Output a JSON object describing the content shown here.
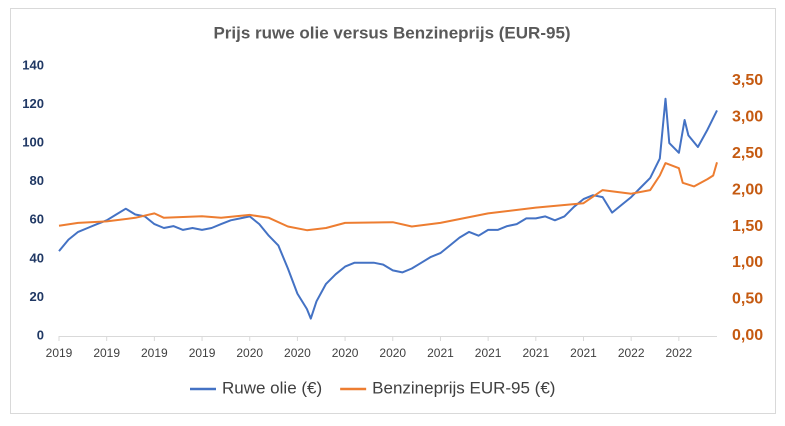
{
  "chart_data": {
    "type": "line",
    "title": "Prijs ruwe olie versus Benzineprijs (EUR-95)",
    "xlim": [
      2019,
      2022.45
    ],
    "xticks": [
      {
        "value": 2019,
        "label": "2019"
      },
      {
        "value": 2019.25,
        "label": "2019"
      },
      {
        "value": 2019.5,
        "label": "2019"
      },
      {
        "value": 2019.75,
        "label": "2019"
      },
      {
        "value": 2020,
        "label": "2020"
      },
      {
        "value": 2020.25,
        "label": "2020"
      },
      {
        "value": 2020.5,
        "label": "2020"
      },
      {
        "value": 2020.75,
        "label": "2020"
      },
      {
        "value": 2021,
        "label": "2021"
      },
      {
        "value": 2021.25,
        "label": "2021"
      },
      {
        "value": 2021.5,
        "label": "2021"
      },
      {
        "value": 2021.75,
        "label": "2021"
      },
      {
        "value": 2022,
        "label": "2022"
      },
      {
        "value": 2022.25,
        "label": "2022"
      }
    ],
    "ylim": [
      0,
      140
    ],
    "yticks": [
      0,
      20,
      40,
      60,
      80,
      100,
      120,
      140
    ],
    "y2lim": [
      0,
      3.7
    ],
    "y2ticks": [
      {
        "value": 0,
        "label": "0,00"
      },
      {
        "value": 0.5,
        "label": "0,50"
      },
      {
        "value": 1,
        "label": "1,00"
      },
      {
        "value": 1.5,
        "label": "1,50"
      },
      {
        "value": 2,
        "label": "2,00"
      },
      {
        "value": 2.5,
        "label": "2,50"
      },
      {
        "value": 3,
        "label": "3,00"
      },
      {
        "value": 3.5,
        "label": "3,50"
      }
    ],
    "grid": false,
    "legend": "bottom",
    "series": [
      {
        "name": "Ruwe olie (€)",
        "color": "#4472c4",
        "x": [
          2019.0,
          2019.05,
          2019.1,
          2019.15,
          2019.2,
          2019.25,
          2019.3,
          2019.35,
          2019.4,
          2019.45,
          2019.5,
          2019.55,
          2019.6,
          2019.65,
          2019.7,
          2019.75,
          2019.8,
          2019.85,
          2019.9,
          2019.95,
          2020.0,
          2020.05,
          2020.1,
          2020.15,
          2020.2,
          2020.25,
          2020.3,
          2020.32,
          2020.35,
          2020.4,
          2020.45,
          2020.5,
          2020.55,
          2020.6,
          2020.65,
          2020.7,
          2020.75,
          2020.8,
          2020.85,
          2020.9,
          2020.95,
          2021.0,
          2021.05,
          2021.1,
          2021.15,
          2021.2,
          2021.25,
          2021.3,
          2021.35,
          2021.4,
          2021.45,
          2021.5,
          2021.55,
          2021.6,
          2021.65,
          2021.7,
          2021.75,
          2021.8,
          2021.85,
          2021.9,
          2021.95,
          2022.0,
          2022.05,
          2022.1,
          2022.15,
          2022.18,
          2022.2,
          2022.25,
          2022.28,
          2022.3,
          2022.35,
          2022.4,
          2022.45
        ],
        "values": [
          44,
          50,
          54,
          56,
          58,
          60,
          63,
          66,
          63,
          62,
          58,
          56,
          57,
          55,
          56,
          55,
          56,
          58,
          60,
          61,
          62,
          58,
          52,
          47,
          35,
          22,
          14,
          9,
          18,
          27,
          32,
          36,
          38,
          38,
          38,
          37,
          34,
          33,
          35,
          38,
          41,
          43,
          47,
          51,
          54,
          52,
          55,
          55,
          57,
          58,
          61,
          61,
          62,
          60,
          62,
          67,
          71,
          73,
          72,
          64,
          68,
          72,
          77,
          82,
          92,
          123,
          100,
          95,
          112,
          104,
          98,
          107,
          117
        ]
      },
      {
        "name": "Benzineprijs EUR-95 (€)",
        "color": "#ed7d31",
        "axis": "y2",
        "x": [
          2019.0,
          2019.1,
          2019.25,
          2019.4,
          2019.5,
          2019.55,
          2019.75,
          2019.85,
          2020.0,
          2020.1,
          2020.2,
          2020.3,
          2020.4,
          2020.5,
          2020.75,
          2020.85,
          2021.0,
          2021.25,
          2021.5,
          2021.75,
          2021.85,
          2022.0,
          2022.1,
          2022.15,
          2022.18,
          2022.25,
          2022.27,
          2022.33,
          2022.4,
          2022.43,
          2022.45
        ],
        "values": [
          1.51,
          1.55,
          1.57,
          1.62,
          1.68,
          1.62,
          1.64,
          1.62,
          1.66,
          1.62,
          1.5,
          1.45,
          1.48,
          1.55,
          1.56,
          1.5,
          1.55,
          1.68,
          1.76,
          1.82,
          2.0,
          1.95,
          2.0,
          2.2,
          2.37,
          2.3,
          2.1,
          2.05,
          2.15,
          2.2,
          2.38
        ]
      }
    ]
  }
}
